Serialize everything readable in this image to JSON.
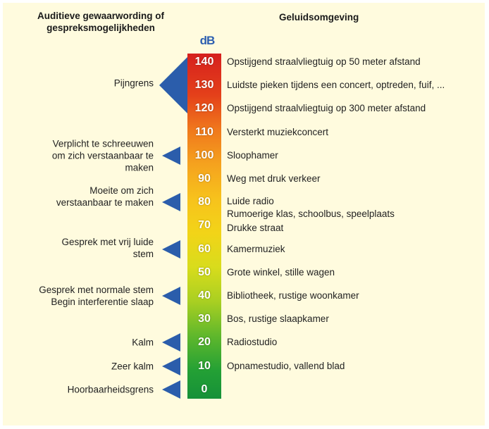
{
  "header": {
    "left": "Auditieve gewaarwording of\ngespreksmogelijkheden",
    "right": "Geluidsomgeving"
  },
  "unit": "dB",
  "scale": [
    {
      "db": "140",
      "env": "Opstijgend straalvliegtuig op 50 meter afstand"
    },
    {
      "db": "130",
      "env": "Luidste pieken tijdens een concert, optreden, fuif, ..."
    },
    {
      "db": "120",
      "env": "Opstijgend straalvliegtuig op 300 meter afstand"
    },
    {
      "db": "110",
      "env": "Versterkt muziekconcert"
    },
    {
      "db": "100",
      "env": "Sloophamer"
    },
    {
      "db": "90",
      "env": "Weg met druk verkeer"
    },
    {
      "db": "80",
      "env": "Luide radio\nRumoerige klas, schoolbus, speelplaats"
    },
    {
      "db": "70",
      "env": "Drukke straat"
    },
    {
      "db": "60",
      "env": "Kamermuziek"
    },
    {
      "db": "50",
      "env": "Grote winkel, stille wagen"
    },
    {
      "db": "40",
      "env": "Bibliotheek, rustige woonkamer"
    },
    {
      "db": "30",
      "env": "Bos, rustige slaapkamer"
    },
    {
      "db": "20",
      "env": "Radiostudio"
    },
    {
      "db": "10",
      "env": "Opnamestudio, vallend blad"
    },
    {
      "db": "0",
      "env": ""
    }
  ],
  "perceptions": [
    {
      "db": "130",
      "label": "Pijngrens"
    },
    {
      "db": "100",
      "label": "Verplicht te schreeuwen\nom zich verstaanbaar te\nmaken"
    },
    {
      "db": "80",
      "label": "Moeite om zich\nverstaanbaar te maken"
    },
    {
      "db": "60",
      "label": "Gesprek met vrij luide\nstem"
    },
    {
      "db": "40",
      "label": "Gesprek met normale stem\nBegin interferentie slaap"
    },
    {
      "db": "20",
      "label": "Kalm"
    },
    {
      "db": "10",
      "label": "Zeer kalm"
    },
    {
      "db": "0",
      "label": "Hoorbaarheidsgrens"
    }
  ],
  "colors": {
    "pointer": "#2b5dab",
    "unit": "#2d5fb0",
    "background": "#fffbde"
  }
}
